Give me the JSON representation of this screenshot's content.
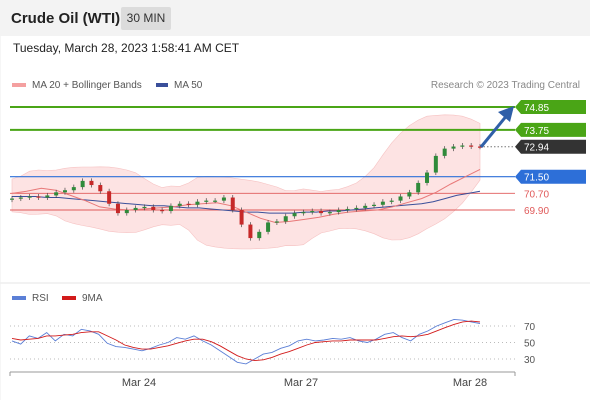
{
  "header": {
    "title": "Crude Oil (WTI)",
    "interval": "30 MIN"
  },
  "datetime": "Tuesday, March 28, 2023 1:58:41 AM CET",
  "legend": {
    "bollinger": "MA 20 + Bollinger Bands",
    "ma50": "MA 50",
    "rsi": "RSI",
    "rsi_ma": "9MA"
  },
  "credit": "Research © 2023 Trading Central",
  "colors": {
    "resistance": "#4aa516",
    "pivot": "#2d6fd8",
    "support": "#e05a5a",
    "current": "#333333",
    "bollinger_fill": "#fde3e3",
    "ma50": "#3a4f9a",
    "rsi": "#5b7fd6",
    "rsi_ma": "#d21b1b",
    "bull_candle": "#2f8a3a",
    "bear_candle": "#c62828"
  },
  "chart_data": [
    {
      "type": "line",
      "name": "price",
      "levels": [
        {
          "kind": "resistance",
          "value": 74.85
        },
        {
          "kind": "resistance",
          "value": 73.75
        },
        {
          "kind": "current",
          "value": 72.94
        },
        {
          "kind": "pivot",
          "value": 71.5
        },
        {
          "kind": "support",
          "value": 70.7
        },
        {
          "kind": "support",
          "value": 69.9
        }
      ],
      "x_labels": [
        "Mar 24",
        "Mar 27",
        "Mar 28"
      ],
      "close": [
        70.45,
        70.5,
        70.55,
        70.5,
        70.6,
        70.75,
        70.85,
        71.0,
        71.3,
        71.1,
        70.8,
        70.2,
        69.75,
        69.9,
        70.0,
        70.05,
        69.9,
        69.85,
        70.1,
        70.2,
        70.15,
        70.3,
        70.35,
        70.35,
        70.5,
        69.9,
        69.2,
        68.55,
        68.85,
        69.3,
        69.35,
        69.6,
        69.75,
        69.8,
        69.85,
        69.75,
        69.8,
        69.9,
        69.95,
        70.0,
        70.1,
        70.15,
        70.3,
        70.35,
        70.55,
        70.75,
        71.2,
        71.7,
        72.5,
        72.85,
        72.95,
        73.0,
        72.95,
        72.94
      ],
      "ma50": [
        70.55,
        70.55,
        70.55,
        70.5,
        70.5,
        70.45,
        70.4,
        70.35,
        70.3,
        70.25,
        70.2,
        70.15,
        70.1,
        70.1,
        70.05,
        70.0,
        70.0,
        69.95,
        69.9,
        69.85,
        69.8,
        69.8,
        69.75,
        69.75,
        69.75,
        69.8,
        69.8,
        69.85,
        69.85,
        69.9,
        69.95,
        70.0,
        70.05,
        70.1,
        70.15,
        70.2,
        70.3,
        70.45,
        70.6,
        70.7,
        70.8
      ],
      "ma20": [
        70.7,
        70.8,
        70.95,
        70.85,
        70.6,
        70.35,
        70.05,
        69.95,
        69.9,
        69.95,
        70.0,
        70.05,
        70.15,
        70.2,
        70.25,
        70.1,
        69.8,
        69.5,
        69.3,
        69.35,
        69.45,
        69.55,
        69.7,
        69.8,
        69.85,
        69.9,
        70.05,
        70.25,
        70.45,
        70.75,
        71.15,
        71.5,
        71.85
      ]
    },
    {
      "type": "line",
      "name": "RSI",
      "ylim": [
        20,
        80
      ],
      "yticks": [
        70,
        50,
        30
      ],
      "rsi": [
        52,
        48,
        58,
        55,
        62,
        52,
        60,
        58,
        66,
        64,
        60,
        49,
        45,
        44,
        42,
        40,
        43,
        47,
        50,
        56,
        54,
        58,
        52,
        47,
        40,
        33,
        26,
        24,
        30,
        36,
        38,
        43,
        46,
        52,
        54,
        52,
        53,
        55,
        54,
        56,
        52,
        50,
        54,
        60,
        62,
        56,
        52,
        60,
        64,
        70,
        74,
        78,
        77,
        75,
        73
      ],
      "rsi_ma": [
        55,
        53,
        54,
        55,
        58,
        58,
        59,
        60,
        62,
        63,
        63,
        58,
        53,
        47,
        44,
        42,
        42,
        44,
        46,
        49,
        52,
        54,
        54,
        51,
        46,
        40,
        34,
        30,
        28,
        29,
        32,
        36,
        39,
        43,
        47,
        50,
        51,
        52,
        52,
        53,
        53,
        53,
        53,
        55,
        57,
        58,
        57,
        58,
        60,
        64,
        68,
        72,
        75,
        76,
        75
      ]
    }
  ]
}
